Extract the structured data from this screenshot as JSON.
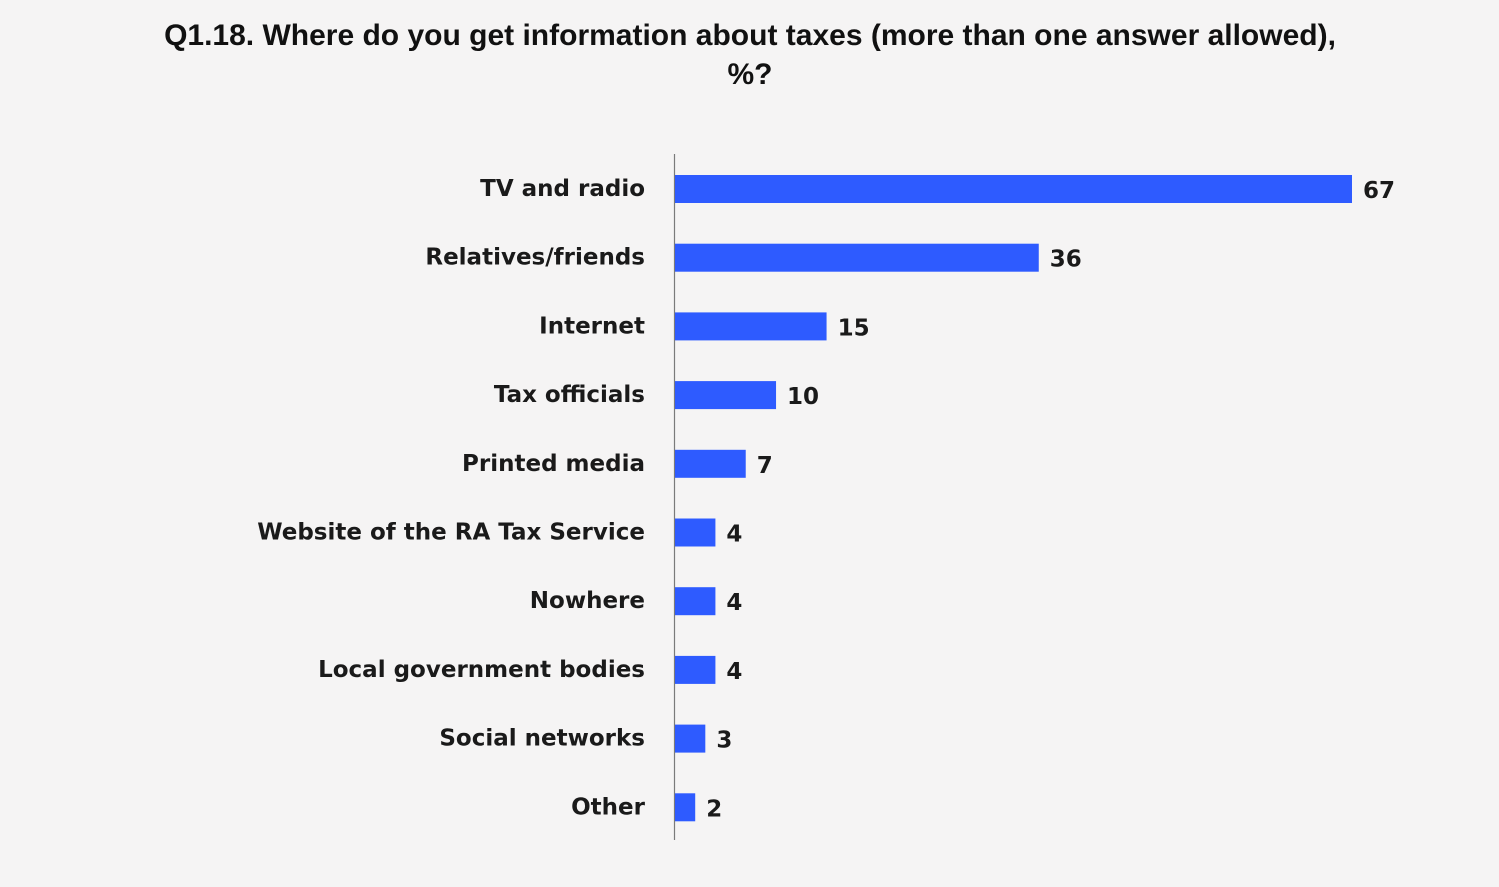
{
  "chart_data": {
    "type": "bar",
    "orientation": "horizontal",
    "title": "Q1.18. Where do you get information about taxes (more than one answer allowed), %?",
    "categories": [
      "TV and radio",
      "Relatives/friends",
      "Internet",
      "Tax officials",
      "Printed media",
      "Website of the RA Tax Service",
      "Nowhere",
      "Local government bodies",
      "Social networks",
      "Other"
    ],
    "values": [
      67,
      36,
      15,
      10,
      7,
      4,
      4,
      4,
      3,
      2
    ],
    "value_labels": [
      "67",
      "36",
      "15",
      "10",
      "7",
      "4",
      "4",
      "4",
      "3",
      "2"
    ],
    "xlim": [
      0,
      67
    ],
    "xlabel": "",
    "ylabel": "",
    "grid": false,
    "legend": "none",
    "bar_color": "#2e5bff"
  }
}
